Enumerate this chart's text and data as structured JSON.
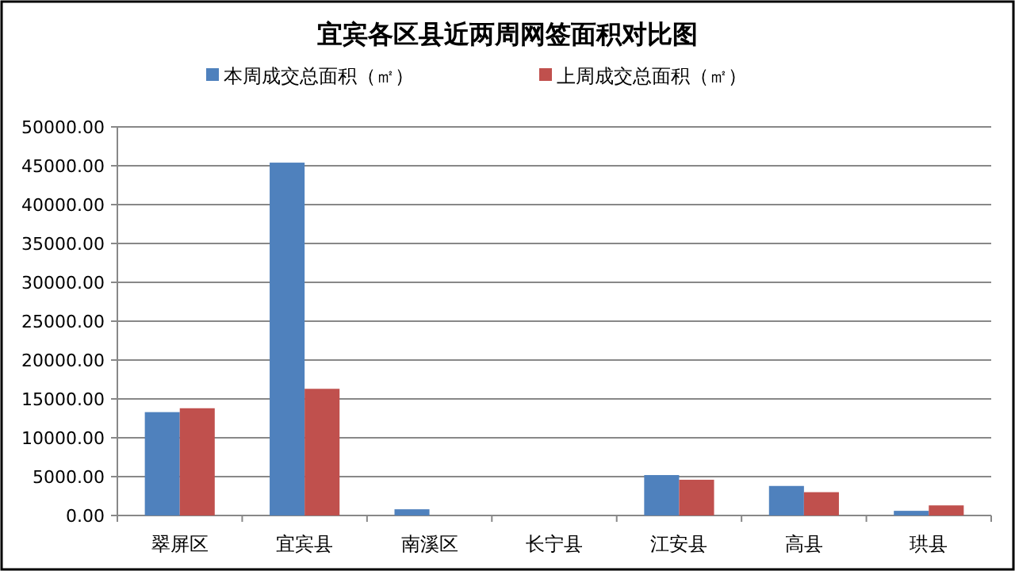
{
  "chart_data": {
    "type": "bar",
    "title": "宜宾各区县近两周网签面积对比图",
    "categories": [
      "翠屏区",
      "宜宾县",
      "南溪区",
      "长宁县",
      "江安县",
      "高县",
      "珙县"
    ],
    "series": [
      {
        "name": "本周成交总面积（㎡）",
        "color": "#4f81bd",
        "values": [
          13300,
          45400,
          800,
          0,
          5200,
          3800,
          600
        ]
      },
      {
        "name": "上周成交总面积（㎡）",
        "color": "#c0504d",
        "values": [
          13800,
          16300,
          0,
          0,
          4600,
          3000,
          1300
        ]
      }
    ],
    "ylim": [
      0,
      50000
    ],
    "yticks": [
      {
        "value": 0,
        "label": "0.00"
      },
      {
        "value": 5000,
        "label": "5000.00"
      },
      {
        "value": 10000,
        "label": "10000.00"
      },
      {
        "value": 15000,
        "label": "15000.00"
      },
      {
        "value": 20000,
        "label": "20000.00"
      },
      {
        "value": 25000,
        "label": "25000.00"
      },
      {
        "value": 30000,
        "label": "30000.00"
      },
      {
        "value": 35000,
        "label": "35000.00"
      },
      {
        "value": 40000,
        "label": "40000.00"
      },
      {
        "value": 45000,
        "label": "45000.00"
      },
      {
        "value": 50000,
        "label": "50000.00"
      }
    ],
    "grid": "y",
    "legend": "top"
  }
}
